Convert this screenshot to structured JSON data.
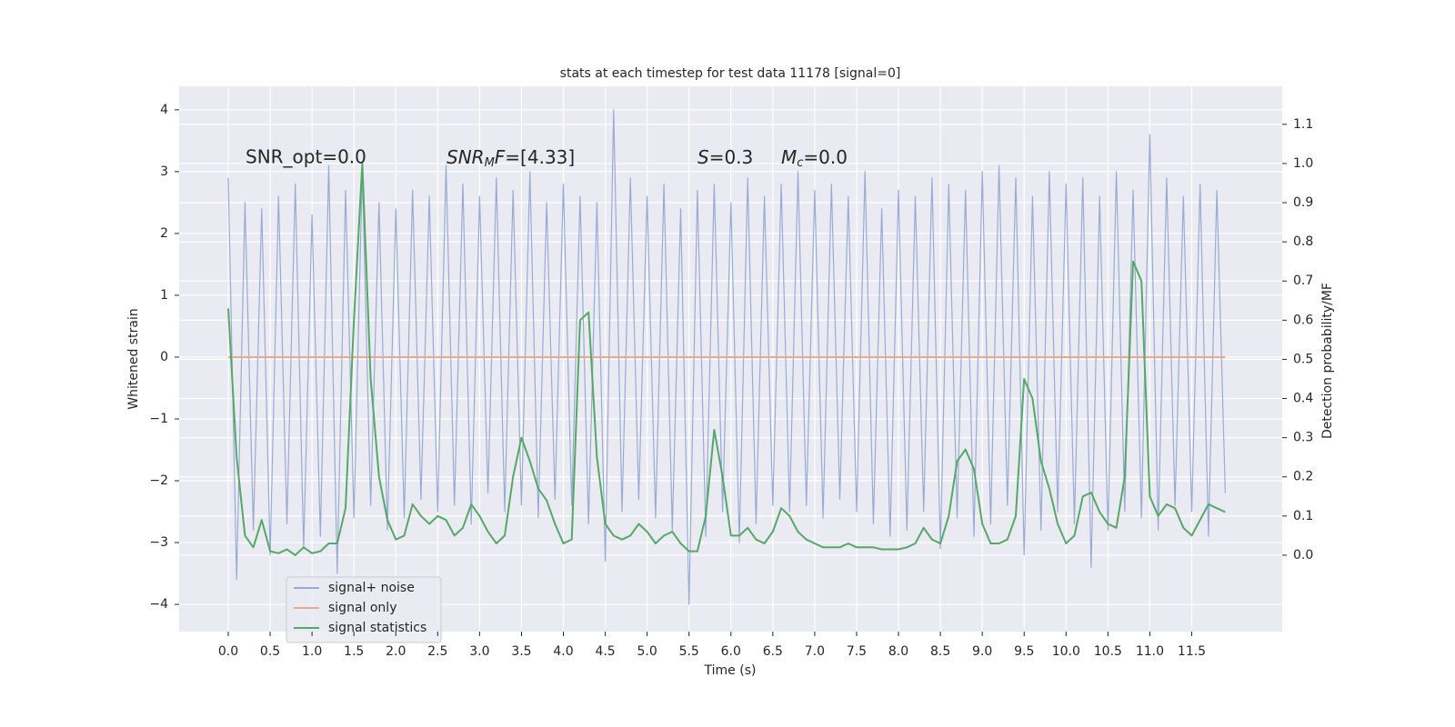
{
  "chart_data": {
    "type": "line",
    "title": "stats at each timestep for test data 11178 [signal=0]",
    "xlabel": "Time (s)",
    "ylabel": "Whitened strain",
    "y2label": "Detection probability/MF",
    "annotations": {
      "snr_opt": "SNR_opt=0.0",
      "snr_mf": [
        "SNR",
        "M",
        "F",
        "=[4.33]"
      ],
      "s": [
        "S",
        "=0.3"
      ],
      "mc": [
        "M",
        "c",
        "=0.0"
      ]
    },
    "x": [
      0,
      0.1,
      0.2,
      0.3,
      0.4,
      0.5,
      0.6,
      0.7,
      0.8,
      0.9,
      1,
      1.1,
      1.2,
      1.3,
      1.4,
      1.5,
      1.6,
      1.7,
      1.8,
      1.9,
      2,
      2.1,
      2.2,
      2.3,
      2.4,
      2.5,
      2.6,
      2.7,
      2.8,
      2.9,
      3,
      3.1,
      3.2,
      3.3,
      3.4,
      3.5,
      3.6,
      3.7,
      3.8,
      3.9,
      4,
      4.1,
      4.2,
      4.3,
      4.4,
      4.5,
      4.6,
      4.7,
      4.8,
      4.9,
      5,
      5.1,
      5.2,
      5.3,
      5.4,
      5.5,
      5.6,
      5.7,
      5.8,
      5.9,
      6,
      6.1,
      6.2,
      6.3,
      6.4,
      6.5,
      6.6,
      6.7,
      6.8,
      6.9,
      7,
      7.1,
      7.2,
      7.3,
      7.4,
      7.5,
      7.6,
      7.7,
      7.8,
      7.9,
      8,
      8.1,
      8.2,
      8.3,
      8.4,
      8.5,
      8.6,
      8.7,
      8.8,
      8.9,
      9,
      9.1,
      9.2,
      9.3,
      9.4,
      9.5,
      9.6,
      9.7,
      9.8,
      9.9,
      10,
      10.1,
      10.2,
      10.3,
      10.4,
      10.5,
      10.6,
      10.7,
      10.8,
      10.9,
      11,
      11.1,
      11.2,
      11.3,
      11.4,
      11.5,
      11.6,
      11.7,
      11.8,
      11.9
    ],
    "series": [
      {
        "name": "signal+ noise",
        "color": "#9aabd3",
        "values": [
          2.9,
          -3.6,
          2.5,
          -2.8,
          2.4,
          -3.2,
          2.6,
          -2.7,
          2.8,
          -3.1,
          2.3,
          -2.9,
          3.1,
          -3.5,
          2.7,
          -2.6,
          3.0,
          -2.4,
          2.5,
          -2.8,
          2.4,
          -2.6,
          2.7,
          -2.3,
          2.6,
          -2.5,
          3.1,
          -2.4,
          2.8,
          -2.7,
          2.6,
          -2.2,
          2.9,
          -2.5,
          2.7,
          -2.4,
          3.0,
          -2.6,
          2.5,
          -2.3,
          2.8,
          -2.4,
          2.6,
          -2.7,
          2.5,
          -3.3,
          4.0,
          -2.5,
          2.9,
          -2.3,
          2.6,
          -2.6,
          2.8,
          -2.8,
          2.4,
          -4.0,
          2.7,
          -2.9,
          2.8,
          -2.5,
          2.5,
          -3.0,
          2.9,
          -2.7,
          2.6,
          -2.4,
          2.8,
          -2.5,
          3.0,
          -2.4,
          2.7,
          -2.6,
          2.8,
          -2.3,
          2.6,
          -2.5,
          3.0,
          -2.7,
          2.4,
          -2.9,
          2.7,
          -2.8,
          2.6,
          -2.5,
          2.9,
          -3.1,
          2.8,
          -2.6,
          2.7,
          -2.9,
          3.0,
          -2.7,
          3.1,
          -2.4,
          2.9,
          -3.2,
          2.6,
          -2.8,
          3.0,
          -2.5,
          2.8,
          -2.7,
          2.9,
          -3.4,
          2.6,
          -2.8,
          3.0,
          -2.5,
          2.7,
          -2.6,
          3.6,
          -2.8,
          2.9,
          -2.4,
          2.6,
          -2.5,
          2.8,
          -2.9,
          2.7,
          -2.2
        ]
      },
      {
        "name": "signal only",
        "color": "#e6ab93",
        "values": [
          0,
          0,
          0,
          0,
          0,
          0,
          0,
          0,
          0,
          0,
          0,
          0,
          0,
          0,
          0,
          0,
          0,
          0,
          0,
          0,
          0,
          0,
          0,
          0,
          0,
          0,
          0,
          0,
          0,
          0,
          0,
          0,
          0,
          0,
          0,
          0,
          0,
          0,
          0,
          0,
          0,
          0,
          0,
          0,
          0,
          0,
          0,
          0,
          0,
          0,
          0,
          0,
          0,
          0,
          0,
          0,
          0,
          0,
          0,
          0,
          0,
          0,
          0,
          0,
          0,
          0,
          0,
          0,
          0,
          0,
          0,
          0,
          0,
          0,
          0,
          0,
          0,
          0,
          0,
          0,
          0,
          0,
          0,
          0,
          0,
          0,
          0,
          0,
          0,
          0,
          0,
          0,
          0,
          0,
          0,
          0,
          0,
          0,
          0,
          0,
          0,
          0,
          0,
          0,
          0,
          0,
          0,
          0,
          0,
          0,
          0,
          0,
          0,
          0,
          0,
          0,
          0,
          0,
          0,
          0
        ]
      },
      {
        "name": "signal statistics",
        "color": "#55a868",
        "axis": "y2",
        "values": [
          0.63,
          0.25,
          0.05,
          0.02,
          0.09,
          0.01,
          0.005,
          0.015,
          0,
          0.02,
          0.005,
          0.01,
          0.03,
          0.03,
          0.12,
          0.6,
          1.0,
          0.45,
          0.2,
          0.09,
          0.04,
          0.05,
          0.13,
          0.1,
          0.08,
          0.1,
          0.09,
          0.05,
          0.07,
          0.13,
          0.1,
          0.06,
          0.03,
          0.05,
          0.2,
          0.3,
          0.24,
          0.17,
          0.14,
          0.08,
          0.03,
          0.04,
          0.6,
          0.62,
          0.25,
          0.08,
          0.05,
          0.04,
          0.05,
          0.08,
          0.06,
          0.03,
          0.05,
          0.06,
          0.03,
          0.01,
          0.01,
          0.1,
          0.32,
          0.2,
          0.05,
          0.05,
          0.07,
          0.04,
          0.03,
          0.06,
          0.12,
          0.1,
          0.06,
          0.04,
          0.03,
          0.02,
          0.02,
          0.02,
          0.03,
          0.02,
          0.02,
          0.02,
          0.015,
          0.015,
          0.015,
          0.02,
          0.03,
          0.07,
          0.04,
          0.03,
          0.1,
          0.24,
          0.27,
          0.22,
          0.08,
          0.03,
          0.03,
          0.04,
          0.1,
          0.45,
          0.4,
          0.24,
          0.17,
          0.08,
          0.03,
          0.05,
          0.15,
          0.16,
          0.11,
          0.08,
          0.07,
          0.2,
          0.75,
          0.7,
          0.15,
          0.1,
          0.13,
          0.12,
          0.07,
          0.05,
          0.09,
          0.13,
          0.12,
          0.11
        ]
      }
    ],
    "xlim": [
      -0.586,
      12.58
    ],
    "ylim": [
      -4.44,
      4.38
    ],
    "y2lim": [
      -0.195,
      1.197
    ],
    "xticks": [
      {
        "value": 0,
        "label": "0.0"
      },
      0.5,
      {
        "value": 1,
        "label": "1.0"
      },
      1.5,
      {
        "value": 2,
        "label": "2.0"
      },
      2.5,
      {
        "value": 3,
        "label": "3.0"
      },
      3.5,
      {
        "value": 4,
        "label": "4.0"
      },
      4.5,
      {
        "value": 5,
        "label": "5.0"
      },
      5.5,
      {
        "value": 6,
        "label": "6.0"
      },
      6.5,
      {
        "value": 7,
        "label": "7.0"
      },
      7.5,
      {
        "value": 8,
        "label": "8.0"
      },
      8.5,
      {
        "value": 9,
        "label": "9.0"
      },
      9.5,
      {
        "value": 10,
        "label": "10.0"
      },
      10.5,
      {
        "value": 11,
        "label": "11.0"
      },
      11.5
    ],
    "yticks": [
      {
        "value": -4,
        "label": "−4"
      },
      {
        "value": -3,
        "label": "−3"
      },
      {
        "value": -2,
        "label": "−2"
      },
      {
        "value": -1,
        "label": "−1"
      },
      0,
      1,
      2,
      3,
      4
    ],
    "y2ticks": [
      {
        "value": 0,
        "label": "0.0"
      },
      0.1,
      0.2,
      0.3,
      0.4,
      0.5,
      0.6,
      0.7,
      0.8,
      0.9,
      {
        "value": 1,
        "label": "1.0"
      },
      1.1
    ],
    "grid": true,
    "legend": "lower left"
  }
}
